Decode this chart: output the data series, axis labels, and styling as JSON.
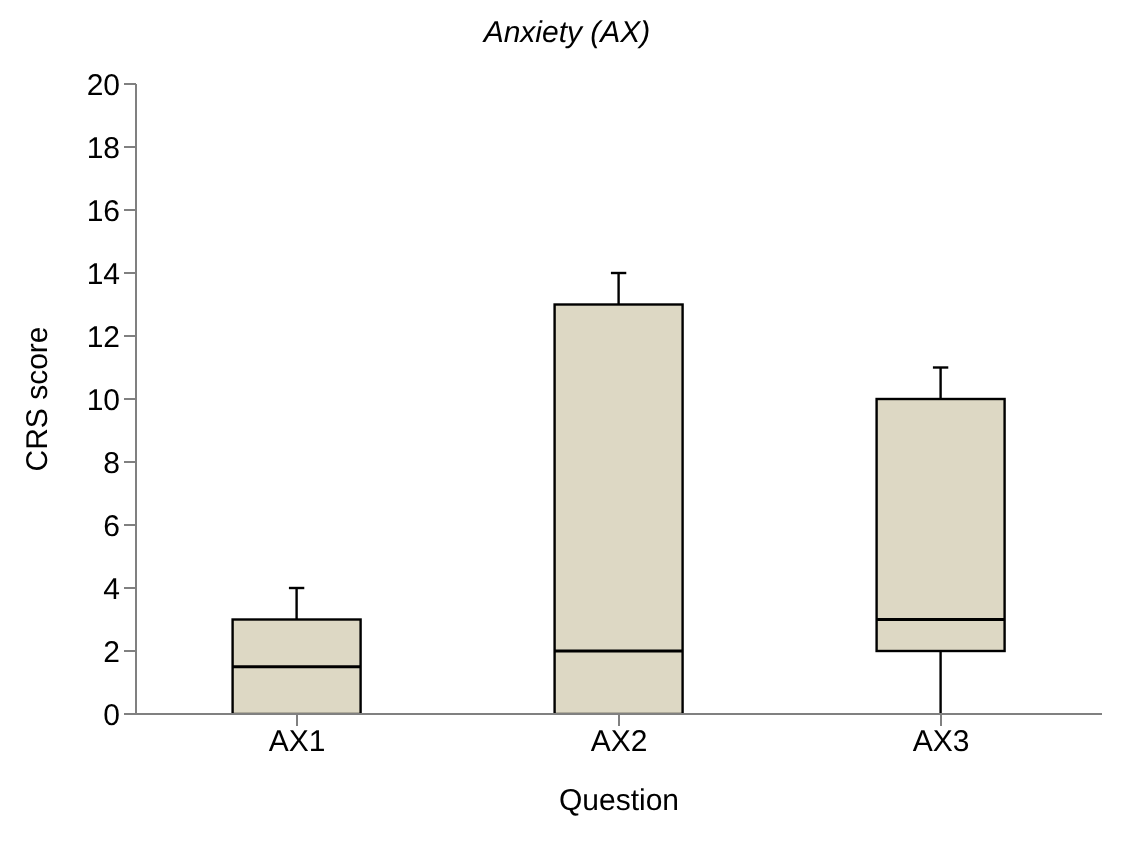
{
  "chart_data": {
    "type": "box",
    "title": "Anxiety (AX)",
    "xlabel": "Question",
    "ylabel": "CRS score",
    "categories": [
      "AX1",
      "AX2",
      "AX3"
    ],
    "color": "#ddd8c4",
    "boxes": [
      {
        "low": 0,
        "q1": 0,
        "median": 1.5,
        "q3": 3,
        "high": 4
      },
      {
        "low": 0,
        "q1": 0,
        "median": 2,
        "q3": 13,
        "high": 14
      },
      {
        "low": 0,
        "q1": 2,
        "median": 3,
        "q3": 10,
        "high": 11
      }
    ],
    "ylim": [
      0,
      20
    ],
    "yticks": [
      0,
      2,
      4,
      6,
      8,
      10,
      12,
      14,
      16,
      18,
      20
    ],
    "grid": false,
    "legend": false
  }
}
